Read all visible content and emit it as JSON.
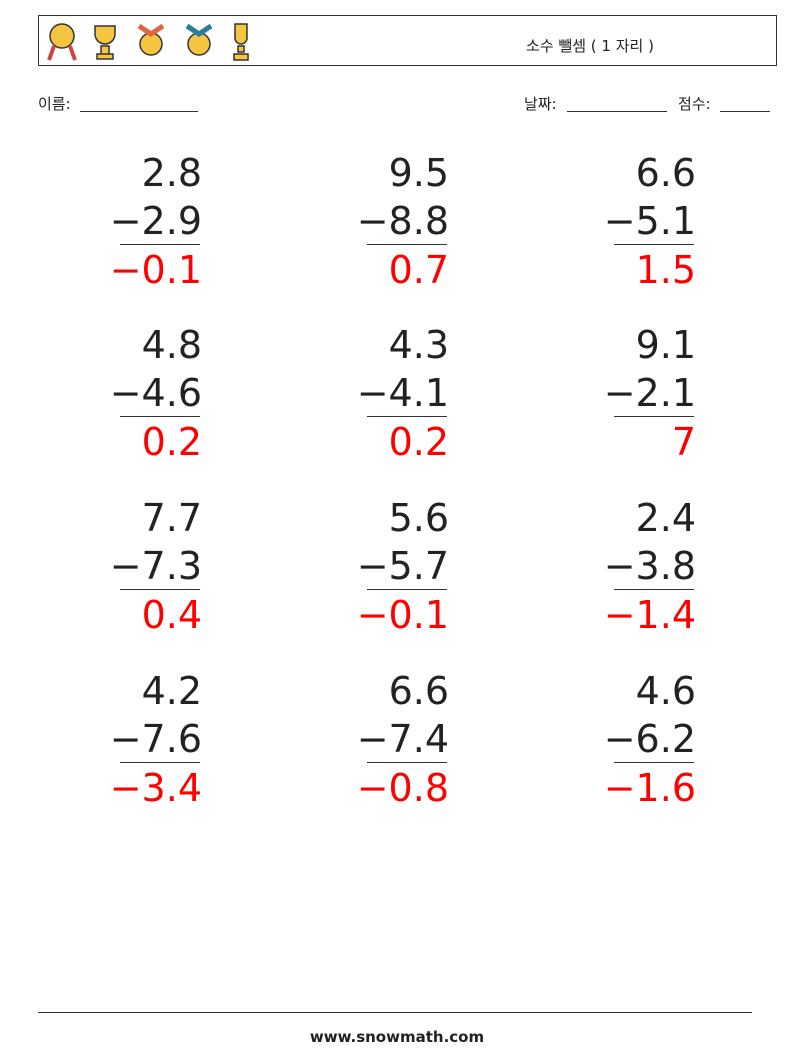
{
  "header": {
    "title": "소수 뺄셈 ( 1 자리 )"
  },
  "fields": {
    "name": "이름:",
    "date": "날짜:",
    "score": "점수:"
  },
  "problems": [
    {
      "top": "2.8",
      "bottom": "−2.9",
      "answer": "−0.1"
    },
    {
      "top": "9.5",
      "bottom": "−8.8",
      "answer": "0.7"
    },
    {
      "top": "6.6",
      "bottom": "−5.1",
      "answer": "1.5"
    },
    {
      "top": "4.8",
      "bottom": "−4.6",
      "answer": "0.2"
    },
    {
      "top": "4.3",
      "bottom": "−4.1",
      "answer": "0.2"
    },
    {
      "top": "9.1",
      "bottom": "−2.1",
      "answer": "7"
    },
    {
      "top": "7.7",
      "bottom": "−7.3",
      "answer": "0.4"
    },
    {
      "top": "5.6",
      "bottom": "−5.7",
      "answer": "−0.1"
    },
    {
      "top": "2.4",
      "bottom": "−3.8",
      "answer": "−1.4"
    },
    {
      "top": "4.2",
      "bottom": "−7.6",
      "answer": "−3.4"
    },
    {
      "top": "6.6",
      "bottom": "−7.4",
      "answer": "−0.8"
    },
    {
      "top": "4.6",
      "bottom": "−6.2",
      "answer": "−1.6"
    }
  ],
  "footer": "www.snowmath.com"
}
